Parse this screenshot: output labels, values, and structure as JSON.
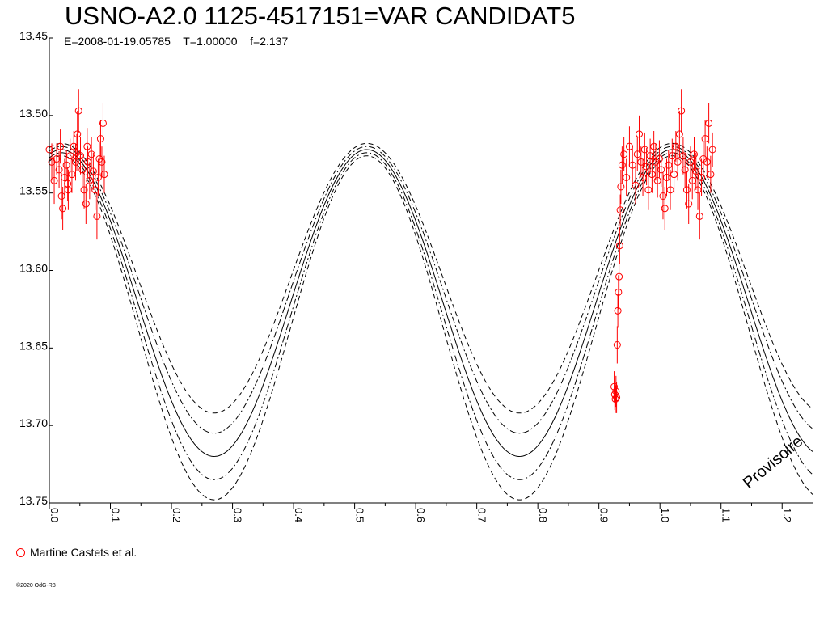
{
  "chart_data": {
    "type": "scatter",
    "title": "USNO-A2.0 1125-4517151=VAR CANDIDAT5",
    "subtitle": "E=2008-01-19.05785    T=1.00000    f=2.137",
    "xlim": [
      0.0,
      1.25
    ],
    "ylim": [
      13.45,
      13.75
    ],
    "y_inverted": true,
    "x_ticks": [
      "0.0",
      "0.1",
      "0.2",
      "0.3",
      "0.4",
      "0.5",
      "0.6",
      "0.7",
      "0.8",
      "0.9",
      "1.0",
      "1.1",
      "1.2"
    ],
    "y_ticks": [
      "13.45",
      "13.50",
      "13.55",
      "13.60",
      "13.65",
      "13.70",
      "13.75"
    ],
    "model": {
      "shape": "sinusoid",
      "frequency_per_unit_phase": 2,
      "maximum_phase": 0.52,
      "curves": [
        {
          "style": "solid",
          "max_mag": 13.522,
          "min_mag": 13.72
        },
        {
          "style": "dashdot",
          "max_mag": 13.52,
          "min_mag": 13.705
        },
        {
          "style": "dashdot",
          "max_mag": 13.524,
          "min_mag": 13.735
        },
        {
          "style": "dashed",
          "max_mag": 13.518,
          "min_mag": 13.692
        },
        {
          "style": "dashed",
          "max_mag": 13.526,
          "min_mag": 13.748
        }
      ]
    },
    "series": [
      {
        "name": "Martine Castets et al.",
        "color": "#ff0000",
        "marker": "open-circle",
        "points": [
          [
            0.0,
            13.522,
            0.01
          ],
          [
            0.004,
            13.53,
            0.012
          ],
          [
            0.008,
            13.542,
            0.015
          ],
          [
            0.012,
            13.528,
            0.01
          ],
          [
            0.016,
            13.535,
            0.012
          ],
          [
            0.02,
            13.552,
            0.015
          ],
          [
            0.022,
            13.56,
            0.014
          ],
          [
            0.025,
            13.54,
            0.012
          ],
          [
            0.028,
            13.532,
            0.01
          ],
          [
            0.031,
            13.548,
            0.013
          ],
          [
            0.034,
            13.526,
            0.011
          ],
          [
            0.037,
            13.538,
            0.012
          ],
          [
            0.04,
            13.52,
            0.01
          ],
          [
            0.043,
            13.53,
            0.012
          ],
          [
            0.046,
            13.512,
            0.015
          ],
          [
            0.048,
            13.497,
            0.014
          ],
          [
            0.051,
            13.526,
            0.012
          ],
          [
            0.054,
            13.535,
            0.011
          ],
          [
            0.057,
            13.548,
            0.012
          ],
          [
            0.06,
            13.557,
            0.013
          ],
          [
            0.063,
            13.53,
            0.01
          ],
          [
            0.066,
            13.542,
            0.012
          ],
          [
            0.069,
            13.525,
            0.011
          ],
          [
            0.072,
            13.536,
            0.012
          ],
          [
            0.075,
            13.548,
            0.013
          ],
          [
            0.078,
            13.565,
            0.015
          ],
          [
            0.08,
            13.54,
            0.012
          ],
          [
            0.082,
            13.528,
            0.011
          ],
          [
            0.084,
            13.515,
            0.012
          ],
          [
            0.086,
            13.53,
            0.01
          ],
          [
            0.088,
            13.505,
            0.013
          ],
          [
            0.09,
            13.538,
            0.012
          ],
          [
            0.03,
            13.544,
            0.011
          ],
          [
            0.045,
            13.524,
            0.012
          ],
          [
            0.018,
            13.52,
            0.011
          ],
          [
            0.062,
            13.52,
            0.012
          ],
          [
            0.925,
            13.675,
            0.01
          ],
          [
            0.926,
            13.68,
            0.01
          ],
          [
            0.927,
            13.683,
            0.009
          ],
          [
            0.928,
            13.678,
            0.01
          ],
          [
            0.929,
            13.682,
            0.01
          ],
          [
            0.93,
            13.648,
            0.012
          ],
          [
            0.931,
            13.626,
            0.011
          ],
          [
            0.932,
            13.614,
            0.011
          ],
          [
            0.933,
            13.604,
            0.01
          ],
          [
            0.934,
            13.584,
            0.012
          ],
          [
            0.935,
            13.561,
            0.01
          ],
          [
            0.936,
            13.546,
            0.011
          ],
          [
            0.938,
            13.532,
            0.012
          ],
          [
            0.941,
            13.525,
            0.011
          ],
          [
            0.945,
            13.54,
            0.012
          ],
          [
            0.95,
            13.52,
            0.013
          ],
          [
            0.955,
            13.532,
            0.012
          ],
          [
            0.96,
            13.545,
            0.012
          ],
          [
            0.963,
            13.525,
            0.011
          ],
          [
            0.966,
            13.512,
            0.012
          ],
          [
            0.969,
            13.53,
            0.01
          ],
          [
            0.972,
            13.54,
            0.012
          ],
          [
            0.975,
            13.522,
            0.011
          ],
          [
            0.978,
            13.533,
            0.012
          ],
          [
            0.981,
            13.548,
            0.013
          ],
          [
            0.984,
            13.526,
            0.011
          ],
          [
            0.987,
            13.538,
            0.012
          ],
          [
            0.99,
            13.52,
            0.01
          ],
          [
            0.993,
            13.53,
            0.012
          ],
          [
            0.996,
            13.542,
            0.011
          ],
          [
            0.999,
            13.528,
            0.012
          ],
          [
            1.002,
            13.535,
            0.011
          ],
          [
            1.005,
            13.552,
            0.015
          ],
          [
            1.008,
            13.56,
            0.014
          ],
          [
            1.011,
            13.54,
            0.012
          ],
          [
            1.014,
            13.532,
            0.01
          ],
          [
            1.017,
            13.548,
            0.013
          ],
          [
            1.02,
            13.526,
            0.011
          ],
          [
            1.023,
            13.538,
            0.012
          ],
          [
            1.026,
            13.52,
            0.01
          ],
          [
            1.029,
            13.53,
            0.012
          ],
          [
            1.032,
            13.512,
            0.015
          ],
          [
            1.035,
            13.497,
            0.014
          ],
          [
            1.038,
            13.526,
            0.012
          ],
          [
            1.041,
            13.535,
            0.011
          ],
          [
            1.044,
            13.548,
            0.012
          ],
          [
            1.047,
            13.557,
            0.013
          ],
          [
            1.05,
            13.53,
            0.01
          ],
          [
            1.053,
            13.542,
            0.012
          ],
          [
            1.056,
            13.525,
            0.011
          ],
          [
            1.059,
            13.536,
            0.012
          ],
          [
            1.062,
            13.548,
            0.013
          ],
          [
            1.065,
            13.565,
            0.015
          ],
          [
            1.068,
            13.54,
            0.012
          ],
          [
            1.071,
            13.528,
            0.011
          ],
          [
            1.074,
            13.515,
            0.012
          ],
          [
            1.077,
            13.53,
            0.01
          ],
          [
            1.08,
            13.505,
            0.013
          ],
          [
            1.083,
            13.538,
            0.012
          ],
          [
            1.086,
            13.522,
            0.011
          ]
        ]
      }
    ],
    "legend": "bottom-left",
    "annotation": "Provisoire"
  },
  "copyright": "©2020 OdG-R8"
}
